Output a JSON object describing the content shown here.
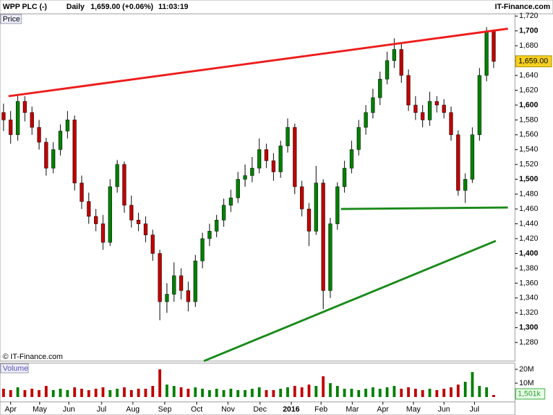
{
  "chart_data": {
    "type": "candlestick",
    "title": "WPP PLC (-)",
    "period": "Daily",
    "last_quote": "1,659.00 (+0.06%)",
    "time": "11:03:19",
    "source": "IT-Finance.com",
    "copyright": "© IT-Finance.com",
    "price_label": "Price",
    "volume_label": "Volume",
    "up_color": "#008000",
    "down_color": "#c00000",
    "xlim": [
      -0.5,
      72
    ],
    "xticks": [
      {
        "value": 1,
        "label": "Apr"
      },
      {
        "value": 5.1,
        "label": "May"
      },
      {
        "value": 9.2,
        "label": "Jun"
      },
      {
        "value": 13.8,
        "label": "Jul"
      },
      {
        "value": 18.2,
        "label": "Aug"
      },
      {
        "value": 22.7,
        "label": "Sep"
      },
      {
        "value": 27.2,
        "label": "Oct"
      },
      {
        "value": 31.6,
        "label": "Nov"
      },
      {
        "value": 36.1,
        "label": "Dec"
      },
      {
        "value": 40.5,
        "label": "2016"
      },
      {
        "value": 44.7,
        "label": "Feb"
      },
      {
        "value": 49.1,
        "label": "Mar"
      },
      {
        "value": 53.4,
        "label": "Apr"
      },
      {
        "value": 57.7,
        "label": "May"
      },
      {
        "value": 62,
        "label": "Jun"
      },
      {
        "value": 66.3,
        "label": "Jul"
      }
    ],
    "ylim": [
      1255,
      1723
    ],
    "yticks": [
      {
        "value": 1280,
        "label": "1,280"
      },
      {
        "value": 1300,
        "label": "1,300"
      },
      {
        "value": 1320,
        "label": "1,320"
      },
      {
        "value": 1340,
        "label": "1,340"
      },
      {
        "value": 1360,
        "label": "1,360"
      },
      {
        "value": 1380,
        "label": "1,380"
      },
      {
        "value": 1400,
        "label": "1,400"
      },
      {
        "value": 1420,
        "label": "1,420"
      },
      {
        "value": 1440,
        "label": "1,440"
      },
      {
        "value": 1460,
        "label": "1,460"
      },
      {
        "value": 1480,
        "label": "1,480"
      },
      {
        "value": 1500,
        "label": "1,500"
      },
      {
        "value": 1520,
        "label": "1,520"
      },
      {
        "value": 1540,
        "label": "1,540"
      },
      {
        "value": 1560,
        "label": "1,560"
      },
      {
        "value": 1580,
        "label": "1,580"
      },
      {
        "value": 1600,
        "label": "1,600"
      },
      {
        "value": 1620,
        "label": "1,620"
      },
      {
        "value": 1640,
        "label": "1,640"
      },
      {
        "value": 1660,
        "label": "1,660"
      },
      {
        "value": 1680,
        "label": "1,680"
      },
      {
        "value": 1700,
        "label": "1,700"
      },
      {
        "value": 1720,
        "label": "1,720"
      }
    ],
    "last_price": {
      "value": 1659,
      "label": "1,659.00"
    },
    "open": [
      1590,
      1580,
      1560,
      1605,
      1590,
      1570,
      1550,
      1515,
      1540,
      1565,
      1580,
      1495,
      1470,
      1450,
      1440,
      1415,
      1490,
      1520,
      1465,
      1445,
      1440,
      1425,
      1400,
      1335,
      1345,
      1370,
      1350,
      1335,
      1390,
      1420,
      1430,
      1445,
      1465,
      1475,
      1500,
      1505,
      1515,
      1540,
      1525,
      1510,
      1545,
      1570,
      1490,
      1460,
      1430,
      1495,
      1350,
      1440,
      1490,
      1515,
      1540,
      1570,
      1590,
      1610,
      1635,
      1660,
      1675,
      1640,
      1600,
      1590,
      1580,
      1605,
      1600,
      1590,
      1560,
      1485,
      1500,
      1560,
      1640,
      1700
    ],
    "high": [
      1602,
      1592,
      1615,
      1612,
      1598,
      1580,
      1556,
      1550,
      1574,
      1592,
      1586,
      1505,
      1482,
      1460,
      1452,
      1500,
      1526,
      1524,
      1478,
      1455,
      1450,
      1432,
      1405,
      1360,
      1388,
      1380,
      1362,
      1398,
      1428,
      1440,
      1452,
      1474,
      1486,
      1510,
      1520,
      1530,
      1555,
      1548,
      1535,
      1552,
      1582,
      1575,
      1498,
      1468,
      1518,
      1500,
      1448,
      1496,
      1525,
      1552,
      1580,
      1600,
      1622,
      1645,
      1672,
      1690,
      1685,
      1648,
      1612,
      1600,
      1618,
      1612,
      1608,
      1598,
      1566,
      1508,
      1570,
      1650,
      1705,
      1702
    ],
    "low": [
      1565,
      1548,
      1552,
      1578,
      1560,
      1540,
      1505,
      1508,
      1532,
      1555,
      1485,
      1460,
      1440,
      1430,
      1405,
      1410,
      1482,
      1455,
      1435,
      1430,
      1415,
      1390,
      1310,
      1320,
      1335,
      1338,
      1322,
      1328,
      1380,
      1410,
      1422,
      1436,
      1456,
      1468,
      1490,
      1496,
      1508,
      1515,
      1498,
      1502,
      1536,
      1480,
      1450,
      1410,
      1425,
      1325,
      1340,
      1432,
      1482,
      1508,
      1532,
      1560,
      1582,
      1600,
      1628,
      1650,
      1630,
      1592,
      1580,
      1570,
      1572,
      1590,
      1582,
      1552,
      1478,
      1468,
      1495,
      1552,
      1632,
      1650
    ],
    "close": [
      1580,
      1560,
      1605,
      1590,
      1570,
      1550,
      1515,
      1540,
      1565,
      1580,
      1495,
      1470,
      1450,
      1440,
      1415,
      1490,
      1520,
      1465,
      1445,
      1440,
      1425,
      1400,
      1335,
      1345,
      1370,
      1350,
      1335,
      1390,
      1420,
      1430,
      1445,
      1465,
      1475,
      1500,
      1505,
      1515,
      1540,
      1525,
      1510,
      1545,
      1570,
      1490,
      1460,
      1430,
      1495,
      1350,
      1440,
      1490,
      1515,
      1540,
      1570,
      1590,
      1610,
      1635,
      1660,
      1675,
      1640,
      1600,
      1590,
      1580,
      1605,
      1600,
      1590,
      1560,
      1485,
      1500,
      1560,
      1640,
      1700,
      1659
    ],
    "volume_ylim": [
      0,
      23
    ],
    "volume_ticks": [
      {
        "value": 10,
        "label": "10M"
      },
      {
        "value": 20,
        "label": "20M"
      }
    ],
    "volume": [
      6,
      5,
      7,
      5,
      6,
      5,
      8,
      5,
      6,
      5,
      7,
      6,
      5,
      6,
      7,
      5,
      6,
      7,
      5,
      6,
      6,
      8,
      20,
      9,
      8,
      7,
      6,
      7,
      6,
      5,
      6,
      5,
      6,
      5,
      5,
      6,
      7,
      5,
      5,
      6,
      7,
      8,
      7,
      9,
      8,
      15,
      10,
      8,
      6,
      6,
      5,
      6,
      7,
      6,
      7,
      8,
      6,
      7,
      6,
      5,
      6,
      5,
      6,
      7,
      9,
      11,
      18,
      8,
      7,
      1.501
    ],
    "last_volume": {
      "value": 1.501,
      "label": "1,501k"
    },
    "trendlines": [
      {
        "color": "#ee1c1c",
        "x": [
          0.7,
          71
        ],
        "y": [
          1612,
          1703
        ]
      },
      {
        "color": "#1a8a1a",
        "x": [
          47.5,
          71
        ],
        "y": [
          1460,
          1462
        ]
      },
      {
        "color": "#1a8a1a",
        "x": [
          28.2,
          69.3
        ],
        "y": [
          1255,
          1417
        ]
      }
    ]
  }
}
